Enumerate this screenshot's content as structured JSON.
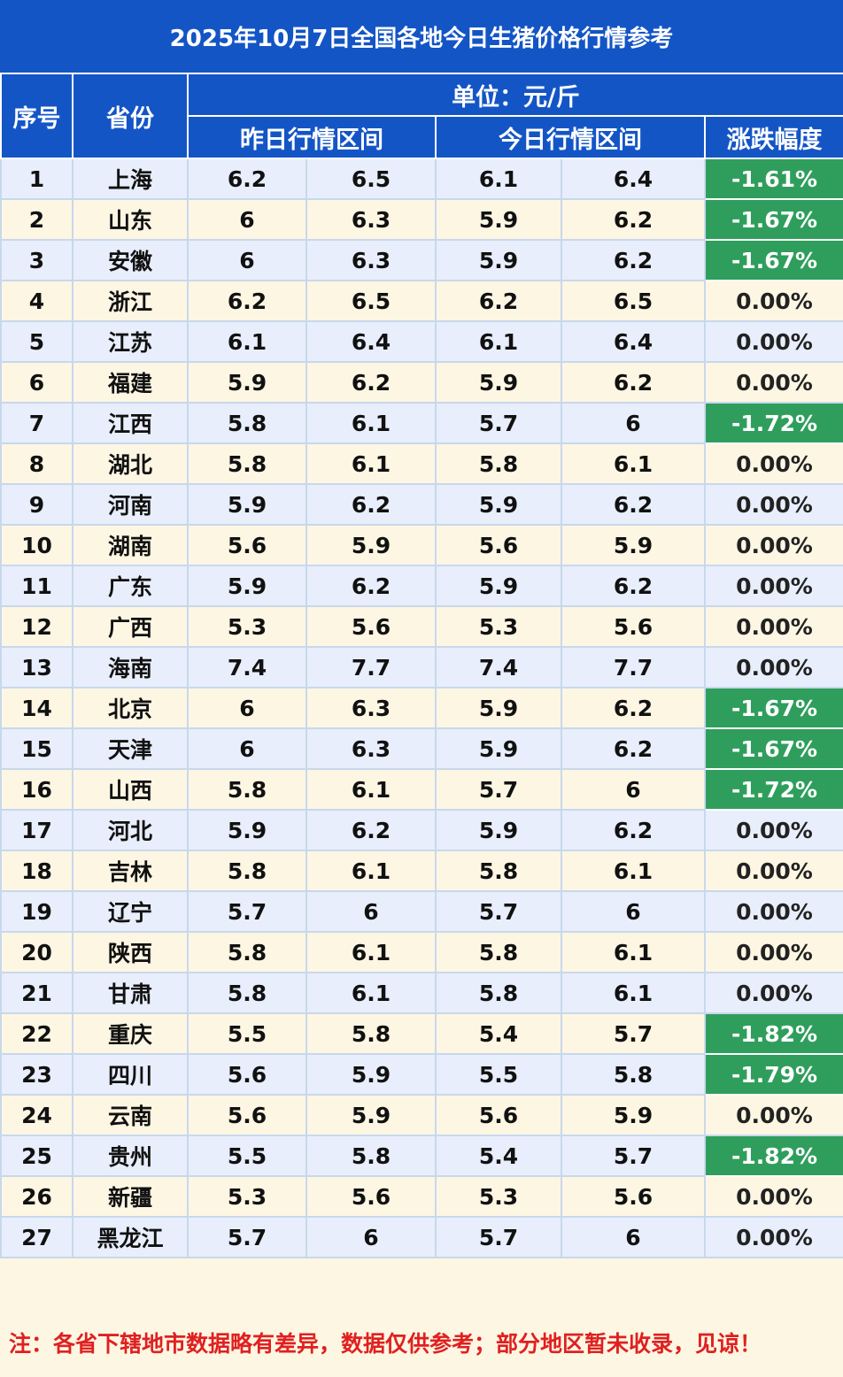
{
  "title": "2025年10月7日全国各地今日生猪价格行情参考",
  "headers": {
    "seq": "序号",
    "province": "省份",
    "unit": "单位：元/斤",
    "yesterday": "昨日行情区间",
    "today": "今日行情区间",
    "change": "涨跌幅度"
  },
  "rows": [
    {
      "seq": "1",
      "province": "上海",
      "y_low": "6.2",
      "y_high": "6.5",
      "t_low": "6.1",
      "t_high": "6.4",
      "change": "-1.61%"
    },
    {
      "seq": "2",
      "province": "山东",
      "y_low": "6",
      "y_high": "6.3",
      "t_low": "5.9",
      "t_high": "6.2",
      "change": "-1.67%"
    },
    {
      "seq": "3",
      "province": "安徽",
      "y_low": "6",
      "y_high": "6.3",
      "t_low": "5.9",
      "t_high": "6.2",
      "change": "-1.67%"
    },
    {
      "seq": "4",
      "province": "浙江",
      "y_low": "6.2",
      "y_high": "6.5",
      "t_low": "6.2",
      "t_high": "6.5",
      "change": "0.00%"
    },
    {
      "seq": "5",
      "province": "江苏",
      "y_low": "6.1",
      "y_high": "6.4",
      "t_low": "6.1",
      "t_high": "6.4",
      "change": "0.00%"
    },
    {
      "seq": "6",
      "province": "福建",
      "y_low": "5.9",
      "y_high": "6.2",
      "t_low": "5.9",
      "t_high": "6.2",
      "change": "0.00%"
    },
    {
      "seq": "7",
      "province": "江西",
      "y_low": "5.8",
      "y_high": "6.1",
      "t_low": "5.7",
      "t_high": "6",
      "change": "-1.72%"
    },
    {
      "seq": "8",
      "province": "湖北",
      "y_low": "5.8",
      "y_high": "6.1",
      "t_low": "5.8",
      "t_high": "6.1",
      "change": "0.00%"
    },
    {
      "seq": "9",
      "province": "河南",
      "y_low": "5.9",
      "y_high": "6.2",
      "t_low": "5.9",
      "t_high": "6.2",
      "change": "0.00%"
    },
    {
      "seq": "10",
      "province": "湖南",
      "y_low": "5.6",
      "y_high": "5.9",
      "t_low": "5.6",
      "t_high": "5.9",
      "change": "0.00%"
    },
    {
      "seq": "11",
      "province": "广东",
      "y_low": "5.9",
      "y_high": "6.2",
      "t_low": "5.9",
      "t_high": "6.2",
      "change": "0.00%"
    },
    {
      "seq": "12",
      "province": "广西",
      "y_low": "5.3",
      "y_high": "5.6",
      "t_low": "5.3",
      "t_high": "5.6",
      "change": "0.00%"
    },
    {
      "seq": "13",
      "province": "海南",
      "y_low": "7.4",
      "y_high": "7.7",
      "t_low": "7.4",
      "t_high": "7.7",
      "change": "0.00%"
    },
    {
      "seq": "14",
      "province": "北京",
      "y_low": "6",
      "y_high": "6.3",
      "t_low": "5.9",
      "t_high": "6.2",
      "change": "-1.67%"
    },
    {
      "seq": "15",
      "province": "天津",
      "y_low": "6",
      "y_high": "6.3",
      "t_low": "5.9",
      "t_high": "6.2",
      "change": "-1.67%"
    },
    {
      "seq": "16",
      "province": "山西",
      "y_low": "5.8",
      "y_high": "6.1",
      "t_low": "5.7",
      "t_high": "6",
      "change": "-1.72%"
    },
    {
      "seq": "17",
      "province": "河北",
      "y_low": "5.9",
      "y_high": "6.2",
      "t_low": "5.9",
      "t_high": "6.2",
      "change": "0.00%"
    },
    {
      "seq": "18",
      "province": "吉林",
      "y_low": "5.8",
      "y_high": "6.1",
      "t_low": "5.8",
      "t_high": "6.1",
      "change": "0.00%"
    },
    {
      "seq": "19",
      "province": "辽宁",
      "y_low": "5.7",
      "y_high": "6",
      "t_low": "5.7",
      "t_high": "6",
      "change": "0.00%"
    },
    {
      "seq": "20",
      "province": "陕西",
      "y_low": "5.8",
      "y_high": "6.1",
      "t_low": "5.8",
      "t_high": "6.1",
      "change": "0.00%"
    },
    {
      "seq": "21",
      "province": "甘肃",
      "y_low": "5.8",
      "y_high": "6.1",
      "t_low": "5.8",
      "t_high": "6.1",
      "change": "0.00%"
    },
    {
      "seq": "22",
      "province": "重庆",
      "y_low": "5.5",
      "y_high": "5.8",
      "t_low": "5.4",
      "t_high": "5.7",
      "change": "-1.82%"
    },
    {
      "seq": "23",
      "province": "四川",
      "y_low": "5.6",
      "y_high": "5.9",
      "t_low": "5.5",
      "t_high": "5.8",
      "change": "-1.79%"
    },
    {
      "seq": "24",
      "province": "云南",
      "y_low": "5.6",
      "y_high": "5.9",
      "t_low": "5.6",
      "t_high": "5.9",
      "change": "0.00%"
    },
    {
      "seq": "25",
      "province": "贵州",
      "y_low": "5.5",
      "y_high": "5.8",
      "t_low": "5.4",
      "t_high": "5.7",
      "change": "-1.82%"
    },
    {
      "seq": "26",
      "province": "新疆",
      "y_low": "5.3",
      "y_high": "5.6",
      "t_low": "5.3",
      "t_high": "5.6",
      "change": "0.00%"
    },
    {
      "seq": "27",
      "province": "黑龙江",
      "y_low": "5.7",
      "y_high": "6",
      "t_low": "5.7",
      "t_high": "6",
      "change": "0.00%"
    }
  ],
  "note": "注：各省下辖地市数据略有差异，数据仅供参考；部分地区暂未收录，见谅！",
  "colors": {
    "header_blue": "#1455c6",
    "down_green": "#2f9e5c",
    "row_blue": "#e8eefb",
    "row_cream": "#fdf6e3",
    "note_red": "#e02020"
  }
}
